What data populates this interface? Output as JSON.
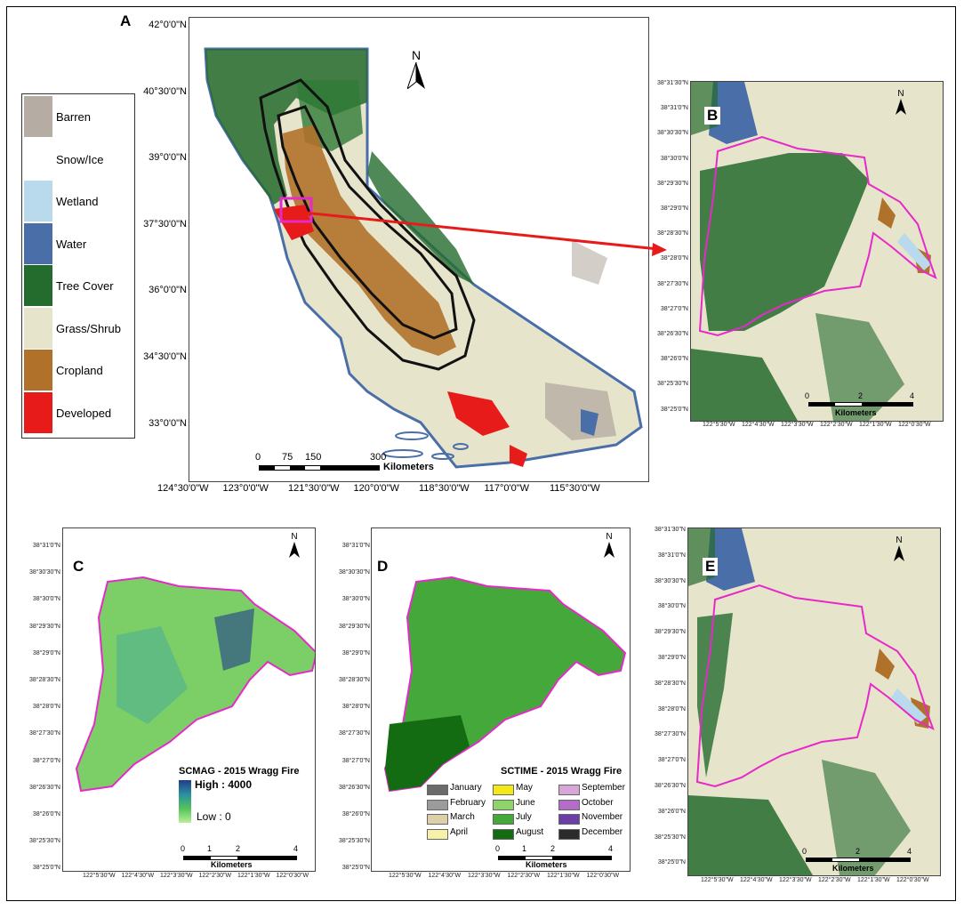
{
  "panels": {
    "a": {
      "letter": "A",
      "lat_labels": [
        "42°0'0\"N",
        "40°30'0\"N",
        "39°0'0\"N",
        "37°30'0\"N",
        "36°0'0\"N",
        "34°30'0\"N",
        "33°0'0\"N"
      ],
      "lon_labels": [
        "124°30'0\"W",
        "123°0'0\"W",
        "121°30'0\"W",
        "120°0'0\"W",
        "118°30'0\"W",
        "117°0'0\"W",
        "115°30'0\"W"
      ],
      "scale_numbers": [
        "0",
        "75",
        "150",
        "300"
      ],
      "scale_unit": "Kilometers",
      "north": "N"
    },
    "b": {
      "letter": "B",
      "lat_labels": [
        "38°31'30\"N",
        "38°31'0\"N",
        "38°30'30\"N",
        "38°30'0\"N",
        "38°29'30\"N",
        "38°29'0\"N",
        "38°28'30\"N",
        "38°28'0\"N",
        "38°27'30\"N",
        "38°27'0\"N",
        "38°26'30\"N",
        "38°26'0\"N",
        "38°25'30\"N",
        "38°25'0\"N"
      ],
      "lon_labels": [
        "122°5'30\"W",
        "122°4'30\"W",
        "122°3'30\"W",
        "122°2'30\"W",
        "122°1'30\"W",
        "122°0'30\"W"
      ],
      "scale_numbers": [
        "0",
        "2",
        "4"
      ],
      "scale_unit": "Kilometers",
      "north": "N"
    },
    "c": {
      "letter": "C",
      "title": "SCMAG - 2015 Wragg Fire",
      "high_label": "High : 4000",
      "low_label": "Low : 0",
      "lat_labels": [
        "38°31'0\"N",
        "38°30'30\"N",
        "38°30'0\"N",
        "38°29'30\"N",
        "38°29'0\"N",
        "38°28'30\"N",
        "38°28'0\"N",
        "38°27'30\"N",
        "38°27'0\"N",
        "38°26'30\"N",
        "38°26'0\"N",
        "38°25'30\"N",
        "38°25'0\"N"
      ],
      "lon_labels": [
        "122°5'30\"W",
        "122°4'30\"W",
        "122°3'30\"W",
        "122°2'30\"W",
        "122°1'30\"W",
        "122°0'30\"W"
      ],
      "scale_numbers": [
        "0",
        "1",
        "2",
        "4"
      ],
      "scale_unit": "Kilometers",
      "north": "N"
    },
    "d": {
      "letter": "D",
      "title": "SCTIME - 2015 Wragg Fire",
      "lat_labels": [
        "38°31'0\"N",
        "38°30'30\"N",
        "38°30'0\"N",
        "38°29'30\"N",
        "38°29'0\"N",
        "38°28'30\"N",
        "38°28'0\"N",
        "38°27'30\"N",
        "38°27'0\"N",
        "38°26'30\"N",
        "38°26'0\"N",
        "38°25'30\"N",
        "38°25'0\"N"
      ],
      "lon_labels": [
        "122°5'30\"W",
        "122°4'30\"W",
        "122°3'30\"W",
        "122°2'30\"W",
        "122°1'30\"W",
        "122°0'30\"W"
      ],
      "scale_numbers": [
        "0",
        "1",
        "2",
        "4"
      ],
      "scale_unit": "Kilometers",
      "north": "N",
      "months": [
        {
          "label": "January",
          "color": "#6b6b6b"
        },
        {
          "label": "May",
          "color": "#f4e81a"
        },
        {
          "label": "September",
          "color": "#d7a6d8"
        },
        {
          "label": "February",
          "color": "#9b9b9b"
        },
        {
          "label": "June",
          "color": "#8fd36a"
        },
        {
          "label": "October",
          "color": "#b46cc9"
        },
        {
          "label": "March",
          "color": "#ddcfa8"
        },
        {
          "label": "July",
          "color": "#45a83a"
        },
        {
          "label": "November",
          "color": "#6b3fa6"
        },
        {
          "label": "April",
          "color": "#f7f0a8"
        },
        {
          "label": "August",
          "color": "#136b12"
        },
        {
          "label": "December",
          "color": "#2b2b2b"
        }
      ]
    },
    "e": {
      "letter": "E",
      "lat_labels": [
        "38°31'30\"N",
        "38°31'0\"N",
        "38°30'30\"N",
        "38°30'0\"N",
        "38°29'30\"N",
        "38°29'0\"N",
        "38°28'30\"N",
        "38°28'0\"N",
        "38°27'30\"N",
        "38°27'0\"N",
        "38°26'30\"N",
        "38°26'0\"N",
        "38°25'30\"N",
        "38°25'0\"N"
      ],
      "lon_labels": [
        "122°5'30\"W",
        "122°4'30\"W",
        "122°3'30\"W",
        "122°2'30\"W",
        "122°1'30\"W",
        "122°0'30\"W"
      ],
      "scale_numbers": [
        "0",
        "2",
        "4"
      ],
      "scale_unit": "Kilometers",
      "north": "N"
    }
  },
  "legend": [
    {
      "label": "Barren",
      "color": "#b5ada3"
    },
    {
      "label": "Snow/Ice",
      "color": "#ffffff"
    },
    {
      "label": "Wetland",
      "color": "#b9d9ec"
    },
    {
      "label": "Water",
      "color": "#4a6ea8"
    },
    {
      "label": "Tree Cover",
      "color": "#246b2e"
    },
    {
      "label": "Grass/Shrub",
      "color": "#e7e4cc"
    },
    {
      "label": "Cropland",
      "color": "#b0712b"
    },
    {
      "label": "Developed",
      "color": "#e81b1b"
    }
  ],
  "colors": {
    "tree": "#246b2e",
    "grass": "#e7e4cc",
    "crop": "#b0712b",
    "developed": "#e81b1b",
    "water": "#4a6ea8",
    "barren": "#b5ada3",
    "fire_perimeter": "#e629c9",
    "arrow": "#e81b1b"
  }
}
